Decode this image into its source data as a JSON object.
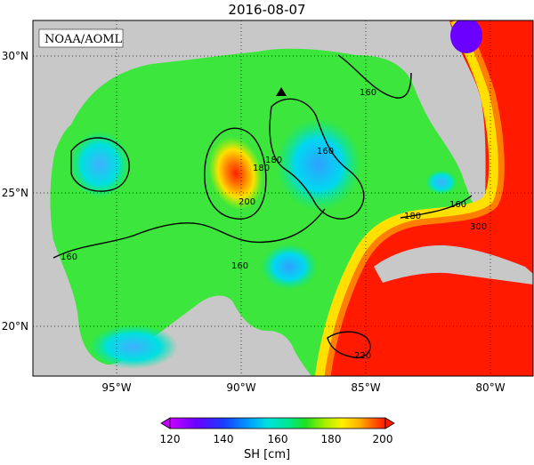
{
  "title": "2016-08-07",
  "credit": "NOAA/AOML",
  "lat_labels": [
    "30°N",
    "25°N",
    "20°N"
  ],
  "lon_labels": [
    "95°W",
    "90°W",
    "85°W",
    "80°W"
  ],
  "contour_labels": [
    "160",
    "160",
    "160",
    "160",
    "180",
    "180",
    "180",
    "200",
    "300",
    "220",
    "160"
  ],
  "colorbar": {
    "title": "SH [cm]",
    "ticks": [
      "120",
      "140",
      "160",
      "180",
      "200"
    ],
    "colors": [
      "#c800ff",
      "#6a00ff",
      "#1a3cff",
      "#00a0ff",
      "#00e0e0",
      "#00e890",
      "#20e020",
      "#a8f000",
      "#fff000",
      "#ffb000",
      "#ff6000",
      "#ff1a00"
    ]
  },
  "colors": {
    "land": "#c8c8c8",
    "background_sea": "#3ce63c",
    "warm_loop": "#ff1a00"
  }
}
